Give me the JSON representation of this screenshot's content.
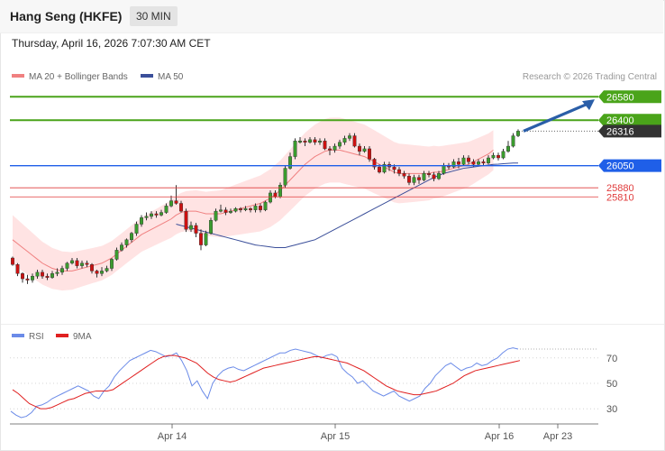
{
  "header": {
    "title": "Hang Seng (HKFE)",
    "timeframe": "30 MIN"
  },
  "datetime": "Thursday, April 16, 2026 7:07:30 AM CET",
  "legend": {
    "ma20": "MA 20 + Bollinger Bands",
    "ma50": "MA 50",
    "rsi": "RSI",
    "ma9": "9MA"
  },
  "credit": "Research © 2026 Trading Central",
  "colors": {
    "up": "#3a9b2e",
    "down": "#cc1111",
    "ma20": "#f08080",
    "ma50": "#3b4f9a",
    "band": "#ffd9d9",
    "target": "#4aa41a",
    "support_blue": "#1f5fe8",
    "support_red": "#e03c3c",
    "rsi": "#6b8be8",
    "ma9": "#e02020",
    "arrow": "#2a5ea8"
  },
  "chart_data": [
    {
      "type": "candlestick",
      "ylim": [
        25000,
        26700
      ],
      "x_ticks": [
        "Apr 14",
        "Apr 15",
        "Apr 16",
        "Apr 23"
      ],
      "levels": [
        {
          "value": 26580,
          "label": "26580",
          "kind": "target"
        },
        {
          "value": 26400,
          "label": "26400",
          "kind": "target"
        },
        {
          "value": 26316,
          "label": "26316",
          "kind": "last"
        },
        {
          "value": 26050,
          "label": "26050",
          "kind": "pivot"
        },
        {
          "value": 25880,
          "label": "25880",
          "kind": "support"
        },
        {
          "value": 25810,
          "label": "25810",
          "kind": "support"
        }
      ],
      "candles": [
        [
          25340,
          25290,
          25350,
          25280
        ],
        [
          25290,
          25220,
          25300,
          25200
        ],
        [
          25220,
          25180,
          25230,
          25150
        ],
        [
          25180,
          25170,
          25210,
          25140
        ],
        [
          25170,
          25200,
          25220,
          25150
        ],
        [
          25200,
          25230,
          25250,
          25180
        ],
        [
          25230,
          25200,
          25250,
          25180
        ],
        [
          25200,
          25190,
          25220,
          25170
        ],
        [
          25190,
          25220,
          25240,
          25180
        ],
        [
          25220,
          25230,
          25260,
          25200
        ],
        [
          25230,
          25260,
          25280,
          25210
        ],
        [
          25260,
          25300,
          25310,
          25240
        ],
        [
          25300,
          25320,
          25340,
          25290
        ],
        [
          25320,
          25280,
          25340,
          25260
        ],
        [
          25280,
          25300,
          25320,
          25260
        ],
        [
          25300,
          25290,
          25320,
          25270
        ],
        [
          25290,
          25240,
          25300,
          25220
        ],
        [
          25240,
          25220,
          25250,
          25190
        ],
        [
          25220,
          25240,
          25270,
          25200
        ],
        [
          25240,
          25260,
          25280,
          25230
        ],
        [
          25260,
          25330,
          25340,
          25240
        ],
        [
          25330,
          25400,
          25420,
          25320
        ],
        [
          25400,
          25440,
          25460,
          25390
        ],
        [
          25440,
          25480,
          25490,
          25420
        ],
        [
          25480,
          25530,
          25540,
          25460
        ],
        [
          25530,
          25600,
          25620,
          25510
        ],
        [
          25600,
          25650,
          25670,
          25580
        ],
        [
          25650,
          25660,
          25690,
          25630
        ],
        [
          25660,
          25680,
          25700,
          25640
        ],
        [
          25680,
          25670,
          25700,
          25650
        ],
        [
          25670,
          25690,
          25710,
          25660
        ],
        [
          25690,
          25740,
          25760,
          25680
        ],
        [
          25740,
          25780,
          25820,
          25730
        ],
        [
          25780,
          25760,
          25900,
          25750
        ],
        [
          25760,
          25700,
          25780,
          25690
        ],
        [
          25700,
          25560,
          25720,
          25540
        ],
        [
          25560,
          25590,
          25620,
          25540
        ],
        [
          25590,
          25530,
          25610,
          25500
        ],
        [
          25530,
          25440,
          25560,
          25400
        ],
        [
          25440,
          25530,
          25550,
          25430
        ],
        [
          25530,
          25630,
          25650,
          25520
        ],
        [
          25630,
          25700,
          25720,
          25620
        ],
        [
          25700,
          25710,
          25750,
          25690
        ],
        [
          25710,
          25690,
          25730,
          25670
        ],
        [
          25690,
          25700,
          25720,
          25680
        ],
        [
          25700,
          25720,
          25730,
          25690
        ],
        [
          25720,
          25710,
          25730,
          25690
        ],
        [
          25710,
          25720,
          25740,
          25700
        ],
        [
          25720,
          25710,
          25730,
          25690
        ],
        [
          25710,
          25740,
          25760,
          25690
        ],
        [
          25740,
          25710,
          25760,
          25690
        ],
        [
          25710,
          25770,
          25780,
          25700
        ],
        [
          25770,
          25840,
          25860,
          25760
        ],
        [
          25840,
          25810,
          25860,
          25800
        ],
        [
          25810,
          25900,
          25920,
          25800
        ],
        [
          25900,
          26030,
          26050,
          25880
        ],
        [
          26030,
          26120,
          26150,
          26020
        ],
        [
          26120,
          26240,
          26260,
          26100
        ],
        [
          26240,
          26240,
          26270,
          26220
        ],
        [
          26240,
          26230,
          26260,
          26200
        ],
        [
          26230,
          26250,
          26270,
          26220
        ],
        [
          26250,
          26230,
          26270,
          26210
        ],
        [
          26230,
          26240,
          26260,
          26210
        ],
        [
          26240,
          26180,
          26260,
          26170
        ],
        [
          26180,
          26170,
          26200,
          26130
        ],
        [
          26170,
          26200,
          26220,
          26150
        ],
        [
          26200,
          26230,
          26250,
          26180
        ],
        [
          26230,
          26260,
          26280,
          26210
        ],
        [
          26260,
          26280,
          26300,
          26240
        ],
        [
          26280,
          26200,
          26300,
          26190
        ],
        [
          26200,
          26160,
          26220,
          26130
        ],
        [
          26160,
          26180,
          26200,
          26150
        ],
        [
          26180,
          26100,
          26200,
          26080
        ],
        [
          26100,
          26040,
          26110,
          26020
        ],
        [
          26040,
          26000,
          26060,
          25990
        ],
        [
          26000,
          26060,
          26080,
          25990
        ],
        [
          26060,
          26040,
          26080,
          26010
        ],
        [
          26040,
          26020,
          26060,
          25990
        ],
        [
          26020,
          25990,
          26040,
          25970
        ],
        [
          25990,
          25970,
          26010,
          25950
        ],
        [
          25970,
          25920,
          25990,
          25900
        ],
        [
          25920,
          25960,
          25980,
          25900
        ],
        [
          25960,
          25940,
          25980,
          25910
        ],
        [
          25940,
          25990,
          26010,
          25930
        ],
        [
          25990,
          25980,
          26010,
          25960
        ],
        [
          25980,
          25950,
          26000,
          25930
        ],
        [
          25950,
          25990,
          26010,
          25940
        ],
        [
          25990,
          26050,
          26070,
          25980
        ],
        [
          26050,
          26040,
          26070,
          26020
        ],
        [
          26040,
          26080,
          26100,
          26030
        ],
        [
          26080,
          26060,
          26110,
          26030
        ],
        [
          26060,
          26110,
          26130,
          26050
        ],
        [
          26110,
          26080,
          26130,
          26060
        ],
        [
          26080,
          26060,
          26100,
          26040
        ],
        [
          26060,
          26080,
          26100,
          26050
        ],
        [
          26080,
          26070,
          26100,
          26050
        ],
        [
          26070,
          26110,
          26130,
          26060
        ],
        [
          26110,
          26130,
          26150,
          26100
        ],
        [
          26130,
          26110,
          26150,
          26090
        ],
        [
          26110,
          26160,
          26180,
          26100
        ],
        [
          26160,
          26200,
          26240,
          26150
        ],
        [
          26200,
          26280,
          26300,
          26190
        ],
        [
          26280,
          26316,
          26330,
          26270
        ]
      ],
      "ma20": [
        25480,
        25450,
        25420,
        25390,
        25360,
        25330,
        25300,
        25280,
        25260,
        25250,
        25240,
        25240,
        25240,
        25250,
        25260,
        25270,
        25280,
        25290,
        25300,
        25320,
        25340,
        25370,
        25400,
        25430,
        25460,
        25490,
        25520,
        25540,
        25560,
        25580,
        25600,
        25620,
        25640,
        25670,
        25690,
        25700,
        25700,
        25700,
        25690,
        25680,
        25680,
        25680,
        25680,
        25690,
        25700,
        25710,
        25720,
        25730,
        25740,
        25750,
        25760,
        25780,
        25800,
        25830,
        25860,
        25900,
        25940,
        25980,
        26020,
        26060,
        26090,
        26120,
        26140,
        26160,
        26170,
        26170,
        26170,
        26160,
        26150,
        26140,
        26130,
        26120,
        26100,
        26080,
        26060,
        26040,
        26020,
        26000,
        25990,
        25990,
        25990,
        25990,
        25990,
        25990,
        25990,
        26000,
        26000,
        26010,
        26020,
        26030,
        26040,
        26050,
        26060,
        26080,
        26100,
        26120,
        26140,
        26170
      ],
      "ma50": [
        25600,
        25590,
        25580,
        25570,
        25560,
        25550,
        25540,
        25530,
        25520,
        25510,
        25500,
        25490,
        25480,
        25470,
        25460,
        25450,
        25440,
        25435,
        25430,
        25425,
        25420,
        25420,
        25420,
        25430,
        25440,
        25450,
        25460,
        25470,
        25480,
        25500,
        25520,
        25540,
        25560,
        25580,
        25600,
        25620,
        25640,
        25660,
        25680,
        25700,
        25720,
        25740,
        25760,
        25780,
        25800,
        25820,
        25840,
        25860,
        25880,
        25900,
        25920,
        25940,
        25960,
        25975,
        25990,
        26000,
        26010,
        26020,
        26030,
        26035,
        26040,
        26045,
        26050,
        26055,
        26060,
        26062,
        26065,
        26068,
        26070,
        26070
      ],
      "rsi": [
        28,
        25,
        23,
        24,
        27,
        32,
        33,
        35,
        38,
        40,
        42,
        44,
        46,
        48,
        46,
        44,
        40,
        38,
        44,
        48,
        55,
        60,
        64,
        68,
        70,
        72,
        74,
        76,
        75,
        73,
        71,
        72,
        74,
        68,
        60,
        48,
        52,
        44,
        38,
        50,
        56,
        60,
        62,
        63,
        61,
        60,
        62,
        64,
        66,
        68,
        70,
        72,
        74,
        74,
        76,
        77,
        76,
        75,
        74,
        72,
        70,
        72,
        73,
        71,
        62,
        58,
        55,
        50,
        52,
        48,
        44,
        42,
        40,
        42,
        44,
        40,
        38,
        36,
        38,
        40,
        46,
        50,
        56,
        60,
        64,
        66,
        63,
        60,
        62,
        63,
        66,
        64,
        65,
        68,
        70,
        74,
        77,
        78,
        77
      ],
      "ma9": [
        45,
        42,
        38,
        34,
        32,
        30,
        30,
        31,
        33,
        35,
        37,
        38,
        40,
        42,
        43,
        44,
        44,
        44,
        45,
        48,
        51,
        54,
        57,
        60,
        63,
        66,
        69,
        71,
        72,
        72,
        71,
        70,
        68,
        66,
        62,
        58,
        55,
        53,
        52,
        51,
        52,
        54,
        56,
        58,
        60,
        62,
        63,
        64,
        65,
        66,
        67,
        68,
        69,
        70,
        71,
        71,
        70,
        69,
        68,
        67,
        66,
        64,
        62,
        60,
        57,
        54,
        51,
        48,
        46,
        44,
        43,
        42,
        41,
        41,
        42,
        43,
        44,
        46,
        48,
        50,
        53,
        56,
        58,
        60,
        61,
        62,
        63,
        64,
        65,
        66,
        67,
        68
      ],
      "rsi_ticks": [
        "70",
        "50",
        "30"
      ]
    }
  ]
}
